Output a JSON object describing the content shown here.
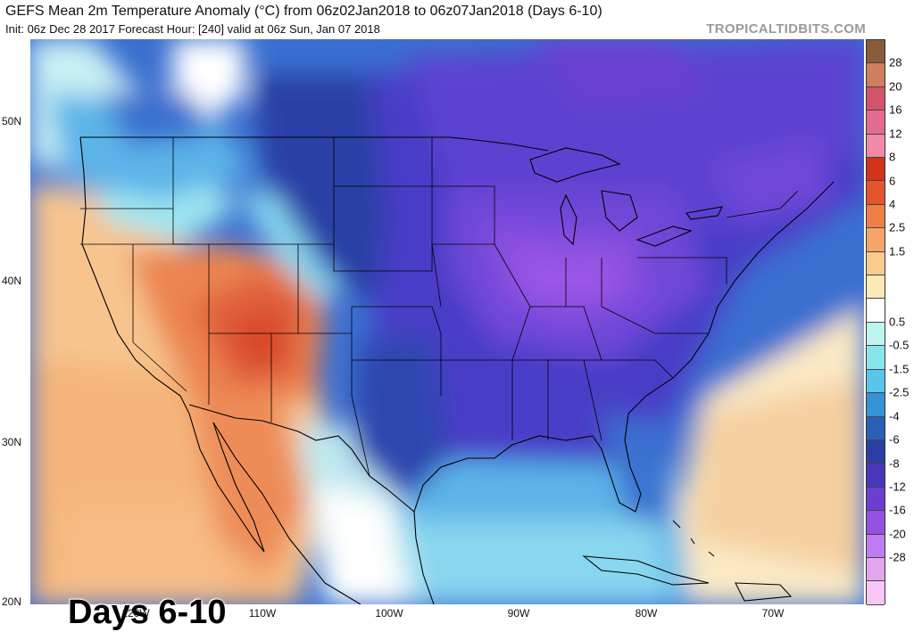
{
  "header": {
    "title": "GEFS Mean 2m Temperature Anomaly (°C) from 06z02Jan2018 to 06z07Jan2018 (Days 6-10)",
    "subtitle": "Init: 06z Dec 28 2017   Forecast Hour: [240]   valid at 06z Sun, Jan 07 2018",
    "brand": "TROPICALTIDBITS.COM"
  },
  "map": {
    "badge": "Days 6-10",
    "lat_labels": [
      "50N",
      "40N",
      "30N",
      "20N"
    ],
    "lon_labels": [
      "120W",
      "110W",
      "100W",
      "90W",
      "80W",
      "70W"
    ]
  },
  "colorbar": {
    "labels": [
      "28",
      "20",
      "16",
      "12",
      "8",
      "6",
      "4",
      "2.5",
      "1.5",
      "0.5",
      "-0.5",
      "-1.5",
      "-2.5",
      "-4",
      "-6",
      "-8",
      "-12",
      "-16",
      "-20",
      "-28"
    ],
    "colors": [
      "#8a5a3c",
      "#cf7f5e",
      "#d5546d",
      "#e36c8f",
      "#ef8aa7",
      "#d2331c",
      "#e3552c",
      "#ef7f46",
      "#f5a56a",
      "#f9cc8e",
      "#fbe9b6",
      "#ffffff",
      "#bff3ee",
      "#88e6ea",
      "#58c6ec",
      "#3691d6",
      "#2a5fb8",
      "#2a3ea4",
      "#4638b8",
      "#6a3fd0",
      "#9452e0",
      "#c17bf0",
      "#e2a5f0",
      "#f5c7f7"
    ]
  },
  "field_colors": {
    "warm_light": "#fbe0b0",
    "warm_mid": "#f7bc84",
    "warm_strong": "#ec8450",
    "warm_core": "#d9482a",
    "neutral": "#ffffff",
    "cool_light": "#9fe6f0",
    "cool_mid": "#5cb4e8",
    "cool_blue": "#3a6fd0",
    "cold_navy": "#2b3fa6",
    "cold_indigo": "#4a3ec8",
    "cold_violet": "#6f47d8",
    "cold_purple": "#9b57e6"
  }
}
